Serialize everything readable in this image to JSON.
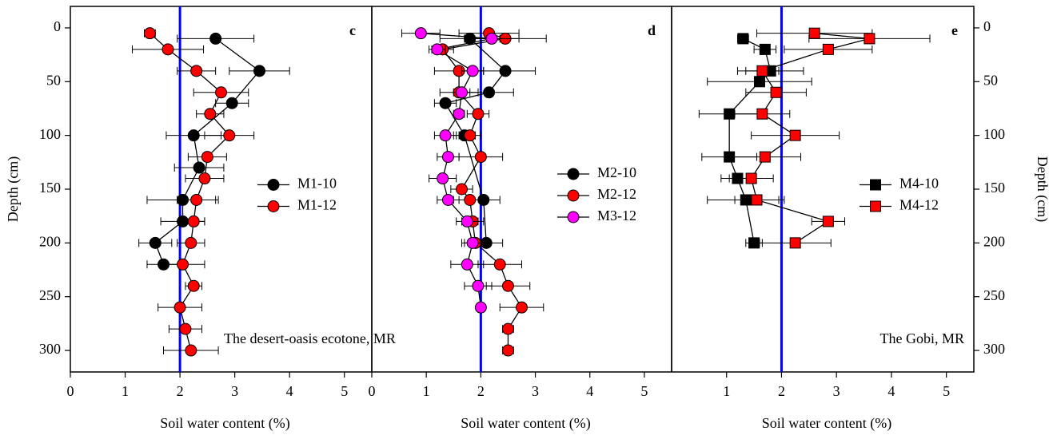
{
  "chart_data": [
    {
      "type": "scatter",
      "panel_label": "c",
      "xlabel": "Soil water content (%)",
      "ylabel": "Depth (cm)",
      "y_axis_side": "left",
      "xlim": [
        0,
        5.5
      ],
      "xticks": [
        0,
        1,
        2,
        3,
        4,
        5
      ],
      "ylim": [
        -20,
        320
      ],
      "yticks": [
        0,
        50,
        100,
        150,
        200,
        250,
        300
      ],
      "y_inverted": true,
      "reference_x": 2,
      "reference_color": "#0000ff",
      "legend": "center right",
      "annotation": "The desert-oasis ecotone, MR",
      "series": [
        {
          "name": "M1-10",
          "color": "#000000",
          "marker": "circle",
          "y": [
            10,
            40,
            70,
            100,
            130,
            160,
            180,
            200,
            220
          ],
          "values": [
            2.65,
            3.45,
            2.95,
            2.25,
            2.35,
            2.05,
            2.05,
            1.55,
            1.7
          ],
          "errors": [
            0.7,
            0.55,
            0.3,
            0.5,
            0.45,
            0.65,
            0.4,
            0.3,
            0.3
          ]
        },
        {
          "name": "M1-12",
          "color": "#ff0000",
          "marker": "circle",
          "y": [
            5,
            20,
            40,
            60,
            80,
            100,
            120,
            140,
            160,
            180,
            200,
            220,
            240,
            260,
            280,
            300
          ],
          "values": [
            1.45,
            1.78,
            2.3,
            2.75,
            2.55,
            2.9,
            2.5,
            2.45,
            2.3,
            2.25,
            2.2,
            2.05,
            2.25,
            2.0,
            2.1,
            2.2
          ],
          "errors": [
            0.1,
            0.65,
            0.35,
            0.5,
            0.25,
            0.45,
            0.35,
            0.35,
            0.35,
            0.2,
            0.25,
            0.4,
            0.15,
            0.4,
            0.3,
            0.5
          ]
        }
      ]
    },
    {
      "type": "scatter",
      "panel_label": "d",
      "xlabel": "Soil water content (%)",
      "xlim": [
        0,
        5.5
      ],
      "xticks": [
        0,
        1,
        2,
        3,
        4,
        5
      ],
      "ylim": [
        -20,
        320
      ],
      "y_inverted": true,
      "reference_x": 2,
      "reference_color": "#0000ff",
      "legend": "center right",
      "series": [
        {
          "name": "M2-10",
          "color": "#000000",
          "marker": "circle",
          "y": [
            10,
            40,
            60,
            70,
            100,
            160,
            200
          ],
          "values": [
            1.8,
            2.45,
            2.15,
            1.35,
            1.7,
            2.05,
            2.1
          ],
          "errors": [
            0.55,
            0.55,
            0.45,
            0.2,
            0.2,
            0.3,
            0.3
          ]
        },
        {
          "name": "M2-12",
          "color": "#ff0000",
          "marker": "circle",
          "y": [
            5,
            10,
            20,
            40,
            60,
            80,
            100,
            120,
            150,
            160,
            180,
            200,
            220,
            240,
            260,
            280,
            300
          ],
          "values": [
            2.15,
            2.45,
            1.3,
            1.6,
            1.6,
            1.95,
            1.8,
            2.0,
            1.65,
            1.8,
            1.85,
            1.9,
            2.35,
            2.5,
            2.75,
            2.5,
            2.5
          ],
          "errors": [
            0.55,
            0.75,
            0.2,
            0.45,
            0.35,
            0.2,
            0.2,
            0.4,
            0.2,
            0.3,
            0.2,
            0.25,
            0.4,
            0.4,
            0.4,
            0.1,
            0.1
          ]
        },
        {
          "name": "M3-12",
          "color": "#ff00ff",
          "marker": "circle",
          "y": [
            5,
            10,
            20,
            40,
            60,
            80,
            100,
            120,
            140,
            160,
            180,
            200,
            220,
            240,
            260
          ],
          "values": [
            0.9,
            2.2,
            1.2,
            1.85,
            1.65,
            1.6,
            1.35,
            1.4,
            1.3,
            1.4,
            1.75,
            1.85,
            1.75,
            1.95,
            2.0
          ],
          "errors": [
            0.35,
            0.5,
            0.15,
            0.2,
            0.15,
            0.1,
            0.2,
            0.2,
            0.25,
            0.2,
            0.2,
            0.15,
            0.3,
            0.25,
            0
          ]
        }
      ]
    },
    {
      "type": "scatter",
      "panel_label": "e",
      "xlabel": "Soil water content (%)",
      "ylabel": "Depth (cm)",
      "y_axis_side": "right",
      "xlim": [
        0,
        5.5
      ],
      "xticks": [
        1,
        2,
        3,
        4,
        5
      ],
      "ylim": [
        -20,
        320
      ],
      "yticks": [
        0,
        50,
        100,
        150,
        200,
        250,
        300
      ],
      "y_inverted": true,
      "reference_x": 2,
      "reference_color": "#0000ff",
      "legend": "center right",
      "annotation": "The Gobi, MR",
      "series": [
        {
          "name": "M4-10",
          "color": "#000000",
          "marker": "square",
          "y": [
            10,
            20,
            40,
            50,
            80,
            120,
            140,
            160,
            200
          ],
          "values": [
            1.3,
            1.7,
            1.8,
            1.6,
            1.05,
            1.05,
            1.2,
            1.35,
            1.5
          ],
          "errors": [
            0.1,
            0.2,
            0.6,
            0.95,
            0.55,
            0.5,
            0.3,
            0.7,
            0.15
          ]
        },
        {
          "name": "M4-12",
          "color": "#ff0000",
          "marker": "square",
          "y": [
            5,
            10,
            20,
            40,
            60,
            80,
            100,
            120,
            140,
            160,
            180,
            200
          ],
          "values": [
            2.6,
            3.6,
            2.85,
            1.65,
            1.9,
            1.65,
            2.25,
            1.7,
            1.45,
            1.55,
            2.85,
            2.25
          ],
          "errors": [
            1.05,
            1.1,
            0.8,
            0.3,
            0.55,
            0.5,
            0.8,
            0.65,
            0.4,
            0.4,
            0.3,
            0.65
          ]
        }
      ]
    }
  ]
}
